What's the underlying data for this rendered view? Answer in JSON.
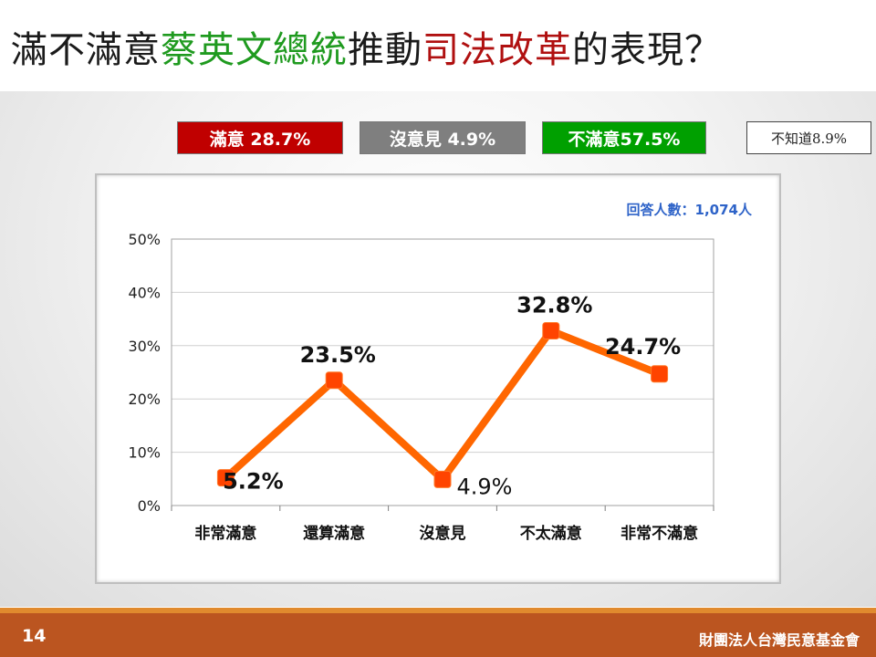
{
  "title": {
    "part1": "滿不滿意",
    "part2": "蔡英文總統",
    "part3": "推動",
    "part4": "司法改革",
    "part5": "的表現？"
  },
  "summary": {
    "satisfied": "滿意 28.7%",
    "no_opinion": "沒意見 4.9%",
    "dissatisfied": "不滿意57.5%",
    "dont_know": "不知道8.9%"
  },
  "respondents": "回答人數：1,074人",
  "chart_data": {
    "type": "line",
    "categories": [
      "非常滿意",
      "還算滿意",
      "沒意見",
      "不太滿意",
      "非常不滿意"
    ],
    "series": [
      {
        "values": [
          5.2,
          23.5,
          4.9,
          32.8,
          24.7
        ]
      }
    ],
    "data_labels": [
      "5.2%",
      "23.5%",
      "4.9%",
      "32.8%",
      "24.7%"
    ],
    "y_ticks": [
      "0%",
      "10%",
      "20%",
      "30%",
      "40%",
      "50%"
    ],
    "ylim": [
      0,
      50
    ],
    "grid": true,
    "line_color": "#ff6600",
    "marker_color": "#ff4400"
  },
  "footer": {
    "page": "14",
    "org": "財團法人台灣民意基金會"
  }
}
